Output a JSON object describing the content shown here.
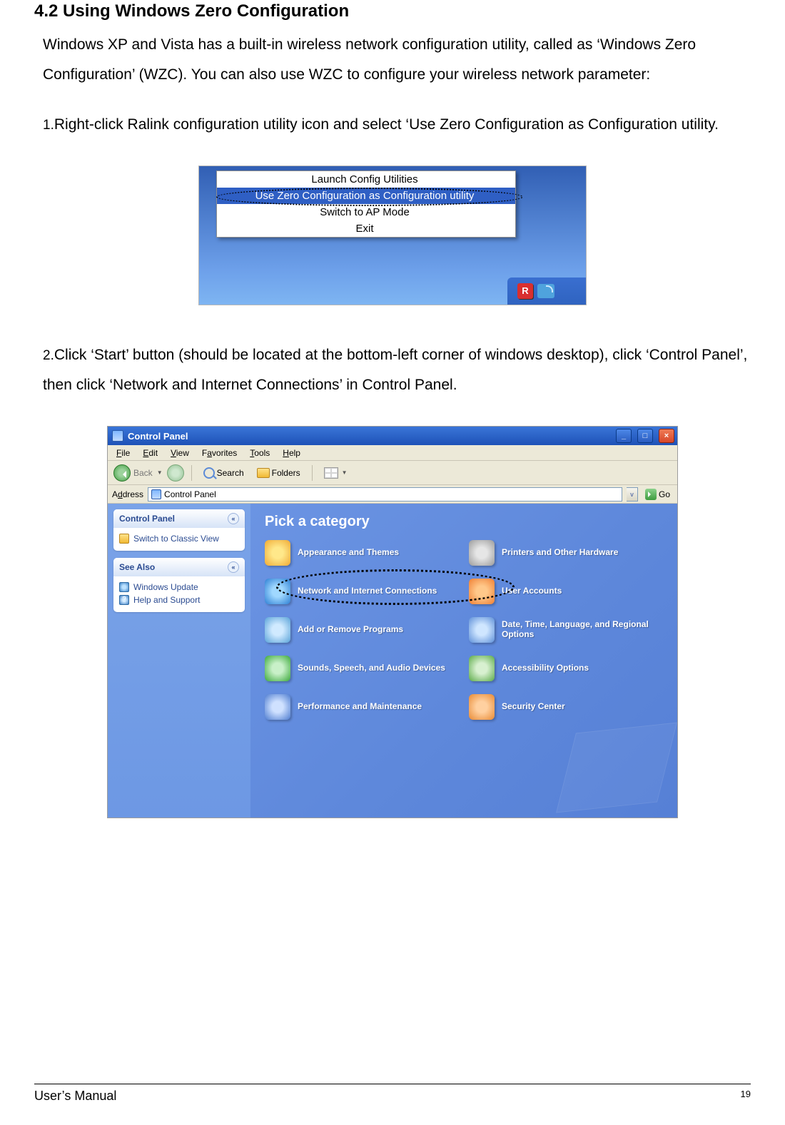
{
  "heading": "4.2 Using Windows Zero Configuration",
  "intro": "Windows XP and Vista has a built-in wireless network configuration utility, called as ‘Windows Zero Configuration’ (WZC). You can also use WZC to configure your wireless network parameter:",
  "step1_num": "1.",
  "step1": "Right-click Ralink configuration utility icon and select ‘Use Zero Configuration as Configuration utility.",
  "step2_num": "2.",
  "step2": "Click ‘Start’ button (should be located at the bottom-left corner of windows desktop), click ‘Control Panel’, then click ‘Network and Internet Connections’ in Control Panel.",
  "context_menu": {
    "items": [
      "Launch Config Utilities",
      "Use Zero Configuration as Configuration utility",
      "Switch to AP Mode",
      "Exit"
    ],
    "highlighted_index": 1
  },
  "window": {
    "title": "Control Panel",
    "menus": [
      "File",
      "Edit",
      "View",
      "Favorites",
      "Tools",
      "Help"
    ],
    "toolbar": {
      "back": "Back",
      "search": "Search",
      "folders": "Folders"
    },
    "address_label": "Address",
    "address_value": "Control Panel",
    "go": "Go",
    "side": {
      "panel1_title": "Control Panel",
      "switch_view": "Switch to Classic View",
      "panel2_title": "See Also",
      "links": [
        "Windows Update",
        "Help and Support"
      ]
    },
    "pick_title": "Pick a category",
    "categories": [
      {
        "label": "Appearance and Themes",
        "cls": "ci-appearance"
      },
      {
        "label": "Printers and Other Hardware",
        "cls": "ci-print"
      },
      {
        "label": "Network and Internet Connections",
        "cls": "ci-net"
      },
      {
        "label": "User Accounts",
        "cls": "ci-user"
      },
      {
        "label": "Add or Remove Programs",
        "cls": "ci-add"
      },
      {
        "label": "Date, Time, Language, and Regional Options",
        "cls": "ci-date"
      },
      {
        "label": "Sounds, Speech, and Audio Devices",
        "cls": "ci-sound"
      },
      {
        "label": "Accessibility Options",
        "cls": "ci-access"
      },
      {
        "label": "Performance and Maintenance",
        "cls": "ci-perf"
      },
      {
        "label": "Security Center",
        "cls": "ci-sec"
      }
    ]
  },
  "footer": {
    "manual": "User’s Manual",
    "page": "19"
  }
}
